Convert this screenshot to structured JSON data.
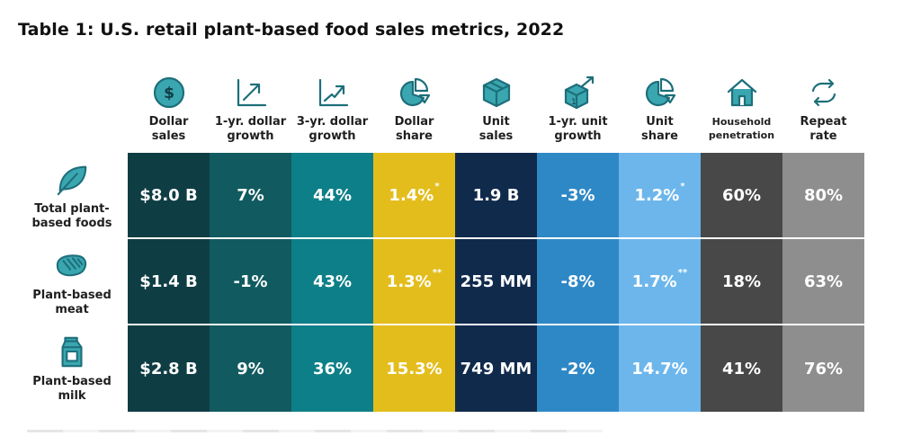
{
  "chart_data": {
    "type": "table",
    "title": "Table 1: U.S. retail plant-based food sales metrics, 2022",
    "columns": [
      {
        "label": "Dollar\nsales",
        "icon": "dollar-circle-icon",
        "color": "#0f3d44"
      },
      {
        "label": "1-yr. dollar\ngrowth",
        "icon": "growth-arrow-icon",
        "color": "#115b60"
      },
      {
        "label": "3-yr. dollar\ngrowth",
        "icon": "growth-line-icon",
        "color": "#0d7f88"
      },
      {
        "label": "Dollar\nshare",
        "icon": "pie-chart-icon",
        "color": "#e3bd1c"
      },
      {
        "label": "Unit\nsales",
        "icon": "box-icon",
        "color": "#102a4c"
      },
      {
        "label": "1-yr. unit\ngrowth",
        "icon": "box-growth-icon",
        "color": "#2e88c6"
      },
      {
        "label": "Unit\nshare",
        "icon": "pie-chart-icon",
        "color": "#6cb6ec"
      },
      {
        "label": "Household\npenetration",
        "icon": "house-icon",
        "color": "#484848"
      },
      {
        "label": "Repeat\nrate",
        "icon": "repeat-icon",
        "color": "#8e8e8e"
      }
    ],
    "rows": [
      {
        "label": "Total plant-\nbased foods",
        "icon": "leaf-icon",
        "values": [
          "$8.0 B",
          "7%",
          "44%",
          "1.4%",
          "1.9 B",
          "-3%",
          "1.2%",
          "60%",
          "80%"
        ],
        "notes": [
          "",
          "",
          "",
          "*",
          "",
          "",
          "*",
          "",
          ""
        ]
      },
      {
        "label": "Plant-based\nmeat",
        "icon": "steak-icon",
        "values": [
          "$1.4 B",
          "-1%",
          "43%",
          "1.3%",
          "255 MM",
          "-8%",
          "1.7%",
          "18%",
          "63%"
        ],
        "notes": [
          "",
          "",
          "",
          "**",
          "",
          "",
          "**",
          "",
          ""
        ]
      },
      {
        "label": "Plant-based\nmilk",
        "icon": "milk-carton-icon",
        "values": [
          "$2.8 B",
          "9%",
          "36%",
          "15.3%",
          "749 MM",
          "-2%",
          "14.7%",
          "41%",
          "76%"
        ],
        "notes": [
          "",
          "",
          "",
          "",
          "",
          "",
          "",
          "",
          ""
        ]
      }
    ]
  }
}
